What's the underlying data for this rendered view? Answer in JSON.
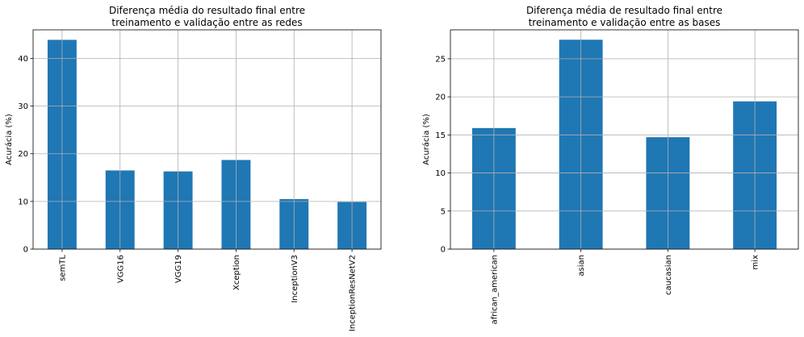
{
  "colors": {
    "bar": "#1f77b4",
    "grid": "#b0b0b0",
    "axis": "#000000"
  },
  "chart_data": [
    {
      "type": "bar",
      "title_line1": "Diferença média do resultado final entre",
      "title_line2": "treinamento e validação entre as redes",
      "ylabel": "Acurácia (%)",
      "xlabel": "",
      "categories": [
        "semTL",
        "VGG16",
        "VGG19",
        "Xception",
        "InceptionV3",
        "InceptionResNetV2"
      ],
      "values": [
        43.9,
        16.5,
        16.3,
        18.7,
        10.5,
        9.9
      ],
      "ylim": [
        0,
        46
      ],
      "yticks": [
        0,
        10,
        20,
        30,
        40
      ],
      "grid": true,
      "legend": "none"
    },
    {
      "type": "bar",
      "title_line1": "Diferença média de resultado final entre",
      "title_line2": "treinamento e validação entre as bases",
      "ylabel": "Acurácia (%)",
      "xlabel": "",
      "categories": [
        "african_american",
        "asian",
        "caucasian",
        "mix"
      ],
      "values": [
        15.9,
        27.5,
        14.7,
        19.4
      ],
      "ylim": [
        0,
        28.8
      ],
      "yticks": [
        0,
        5,
        10,
        15,
        20,
        25
      ],
      "grid": true,
      "legend": "none"
    }
  ]
}
